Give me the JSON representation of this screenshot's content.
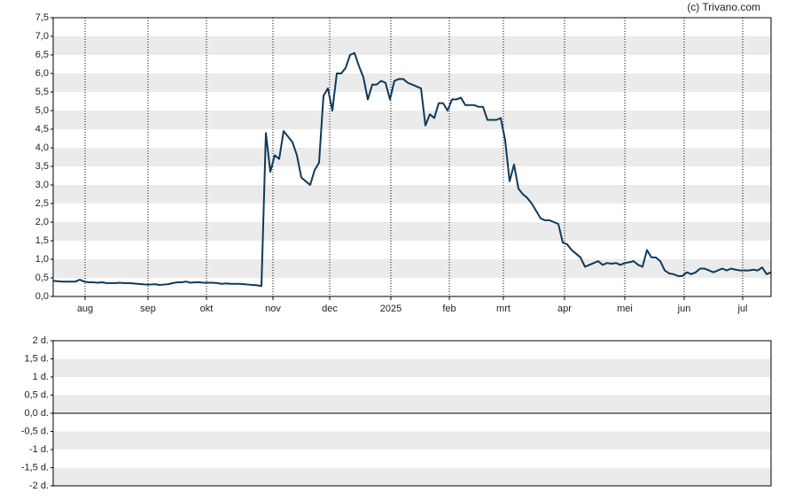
{
  "chart_data": [
    {
      "type": "line",
      "credit": "(c) Trivano.com",
      "color": "#0d3a5c",
      "grid": true,
      "values": [
        0.42,
        0.41,
        0.4,
        0.4,
        0.4,
        0.4,
        0.45,
        0.4,
        0.38,
        0.38,
        0.37,
        0.38,
        0.36,
        0.36,
        0.36,
        0.37,
        0.36,
        0.36,
        0.35,
        0.34,
        0.33,
        0.32,
        0.32,
        0.33,
        0.31,
        0.32,
        0.33,
        0.36,
        0.38,
        0.38,
        0.4,
        0.37,
        0.38,
        0.38,
        0.37,
        0.37,
        0.37,
        0.36,
        0.34,
        0.35,
        0.34,
        0.34,
        0.34,
        0.33,
        0.32,
        0.31,
        0.3,
        0.28,
        4.4,
        3.35,
        3.8,
        3.7,
        4.45,
        4.3,
        4.15,
        3.8,
        3.2,
        3.1,
        3.0,
        3.4,
        3.6,
        5.4,
        5.6,
        5.0,
        6.0,
        6.0,
        6.15,
        6.5,
        6.55,
        6.2,
        5.9,
        5.3,
        5.7,
        5.7,
        5.8,
        5.75,
        5.3,
        5.8,
        5.85,
        5.85,
        5.75,
        5.7,
        5.65,
        5.6,
        4.6,
        4.9,
        4.8,
        5.2,
        5.2,
        5.0,
        5.3,
        5.3,
        5.35,
        5.15,
        5.15,
        5.15,
        5.1,
        5.1,
        4.75,
        4.75,
        4.75,
        4.8,
        4.2,
        3.1,
        3.55,
        2.9,
        2.75,
        2.65,
        2.5,
        2.3,
        2.1,
        2.05,
        2.05,
        2.0,
        1.95,
        1.45,
        1.4,
        1.25,
        1.15,
        1.05,
        0.8,
        0.85,
        0.9,
        0.95,
        0.85,
        0.9,
        0.88,
        0.9,
        0.85,
        0.9,
        0.92,
        0.95,
        0.85,
        0.8,
        1.25,
        1.05,
        1.05,
        0.95,
        0.7,
        0.62,
        0.6,
        0.55,
        0.55,
        0.65,
        0.6,
        0.65,
        0.75,
        0.75,
        0.7,
        0.65,
        0.7,
        0.75,
        0.7,
        0.75,
        0.72,
        0.7,
        0.7,
        0.7,
        0.72,
        0.7,
        0.78,
        0.6,
        0.65
      ],
      "xlim": [
        0,
        162
      ],
      "xticks": [
        {
          "value": 7.2,
          "label": "aug"
        },
        {
          "value": 21.4,
          "label": "sep"
        },
        {
          "value": 34.6,
          "label": "okt"
        },
        {
          "value": 49.6,
          "label": "nov"
        },
        {
          "value": 62.4,
          "label": "dec"
        },
        {
          "value": 76.2,
          "label": "2025"
        },
        {
          "value": 89.4,
          "label": "feb"
        },
        {
          "value": 101.6,
          "label": "mrt"
        },
        {
          "value": 115.4,
          "label": "apr"
        },
        {
          "value": 129,
          "label": "mei"
        },
        {
          "value": 142.4,
          "label": "jun"
        },
        {
          "value": 155.6,
          "label": "jul"
        }
      ],
      "ylim": [
        0,
        7.5
      ],
      "yticks": [
        {
          "value": 0,
          "label": "0,0"
        },
        {
          "value": 0.5,
          "label": "0,5"
        },
        {
          "value": 1,
          "label": "1,0"
        },
        {
          "value": 1.5,
          "label": "1,5"
        },
        {
          "value": 2,
          "label": "2,0"
        },
        {
          "value": 2.5,
          "label": "2,5"
        },
        {
          "value": 3,
          "label": "3,0"
        },
        {
          "value": 3.5,
          "label": "3,5"
        },
        {
          "value": 4,
          "label": "4,0"
        },
        {
          "value": 4.5,
          "label": "4,5"
        },
        {
          "value": 5,
          "label": "5,0"
        },
        {
          "value": 5.5,
          "label": "5,5"
        },
        {
          "value": 6,
          "label": "6,0"
        },
        {
          "value": 6.5,
          "label": "6,5"
        },
        {
          "value": 7,
          "label": "7,0"
        },
        {
          "value": 7.5,
          "label": "7,5"
        }
      ]
    },
    {
      "type": "line",
      "grid": true,
      "ylim": [
        -2,
        2
      ],
      "yticks": [
        {
          "value": -2,
          "label": "-2 d."
        },
        {
          "value": -1.5,
          "label": "-1,5 d."
        },
        {
          "value": -1,
          "label": "-1 d."
        },
        {
          "value": -0.5,
          "label": "-0,5 d."
        },
        {
          "value": 0,
          "label": "0,0 d."
        },
        {
          "value": 0.5,
          "label": "0,5 d."
        },
        {
          "value": 1,
          "label": "1 d."
        },
        {
          "value": 1.5,
          "label": "1,5 d."
        },
        {
          "value": 2,
          "label": "2 d."
        }
      ]
    }
  ]
}
